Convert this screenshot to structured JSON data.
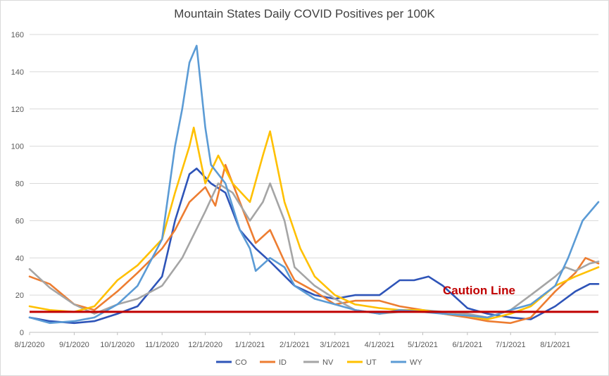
{
  "chart_data": {
    "type": "line",
    "title": "Mountain States Daily COVID Positives per 100K",
    "xlabel": "",
    "ylabel": "",
    "ylim": [
      0,
      160
    ],
    "yticks": [
      "0",
      "20",
      "40",
      "60",
      "80",
      "100",
      "120",
      "140",
      "160"
    ],
    "xticks": [
      "8/1/2020",
      "9/1/2020",
      "10/1/2020",
      "11/1/2020",
      "12/1/2020",
      "1/1/2021",
      "2/1/2021",
      "3/1/2021",
      "4/1/2021",
      "5/1/2021",
      "6/1/2021",
      "7/1/2021",
      "8/1/2021"
    ],
    "grid": "horizontal",
    "legend_position": "bottom",
    "x_start": "2020-08-01",
    "x_end": "2021-08-31",
    "reference_line": {
      "label": "Caution Line",
      "value": 11,
      "color": "#c00000"
    },
    "series": [
      {
        "name": "CO",
        "color": "#2e54b8",
        "points": [
          [
            "2020-08-01",
            8
          ],
          [
            "2020-08-15",
            6
          ],
          [
            "2020-09-01",
            5
          ],
          [
            "2020-09-15",
            6
          ],
          [
            "2020-10-01",
            10
          ],
          [
            "2020-10-15",
            14
          ],
          [
            "2020-11-01",
            30
          ],
          [
            "2020-11-10",
            60
          ],
          [
            "2020-11-20",
            85
          ],
          [
            "2020-11-25",
            88
          ],
          [
            "2020-12-05",
            80
          ],
          [
            "2020-12-15",
            75
          ],
          [
            "2020-12-25",
            55
          ],
          [
            "2021-01-05",
            45
          ],
          [
            "2021-01-15",
            38
          ],
          [
            "2021-02-01",
            25
          ],
          [
            "2021-02-15",
            20
          ],
          [
            "2021-03-01",
            18
          ],
          [
            "2021-03-15",
            20
          ],
          [
            "2021-04-01",
            20
          ],
          [
            "2021-04-15",
            28
          ],
          [
            "2021-04-25",
            28
          ],
          [
            "2021-05-05",
            30
          ],
          [
            "2021-05-15",
            25
          ],
          [
            "2021-06-01",
            13
          ],
          [
            "2021-06-15",
            10
          ],
          [
            "2021-07-01",
            8
          ],
          [
            "2021-07-15",
            7
          ],
          [
            "2021-08-01",
            14
          ],
          [
            "2021-08-15",
            22
          ],
          [
            "2021-08-25",
            26
          ],
          [
            "2021-08-31",
            26
          ]
        ]
      },
      {
        "name": "ID",
        "color": "#ed7d31",
        "points": [
          [
            "2020-08-01",
            30
          ],
          [
            "2020-08-15",
            26
          ],
          [
            "2020-09-01",
            15
          ],
          [
            "2020-09-15",
            12
          ],
          [
            "2020-10-01",
            22
          ],
          [
            "2020-10-15",
            32
          ],
          [
            "2020-11-01",
            45
          ],
          [
            "2020-11-10",
            55
          ],
          [
            "2020-11-20",
            70
          ],
          [
            "2020-12-01",
            78
          ],
          [
            "2020-12-08",
            68
          ],
          [
            "2020-12-15",
            90
          ],
          [
            "2020-12-25",
            70
          ],
          [
            "2021-01-05",
            48
          ],
          [
            "2021-01-15",
            55
          ],
          [
            "2021-01-25",
            38
          ],
          [
            "2021-02-01",
            28
          ],
          [
            "2021-02-15",
            22
          ],
          [
            "2021-03-01",
            15
          ],
          [
            "2021-03-15",
            17
          ],
          [
            "2021-04-01",
            17
          ],
          [
            "2021-04-15",
            14
          ],
          [
            "2021-05-01",
            12
          ],
          [
            "2021-05-15",
            10
          ],
          [
            "2021-06-01",
            8
          ],
          [
            "2021-06-15",
            6
          ],
          [
            "2021-07-01",
            5
          ],
          [
            "2021-07-15",
            8
          ],
          [
            "2021-08-01",
            22
          ],
          [
            "2021-08-15",
            32
          ],
          [
            "2021-08-22",
            40
          ],
          [
            "2021-08-31",
            37
          ]
        ]
      },
      {
        "name": "NV",
        "color": "#a5a5a5",
        "points": [
          [
            "2020-08-01",
            34
          ],
          [
            "2020-08-15",
            24
          ],
          [
            "2020-09-01",
            15
          ],
          [
            "2020-09-15",
            10
          ],
          [
            "2020-10-01",
            15
          ],
          [
            "2020-10-15",
            18
          ],
          [
            "2020-11-01",
            25
          ],
          [
            "2020-11-15",
            40
          ],
          [
            "2020-12-01",
            65
          ],
          [
            "2020-12-10",
            80
          ],
          [
            "2020-12-20",
            75
          ],
          [
            "2021-01-01",
            60
          ],
          [
            "2021-01-10",
            70
          ],
          [
            "2021-01-15",
            80
          ],
          [
            "2021-01-25",
            60
          ],
          [
            "2021-02-01",
            35
          ],
          [
            "2021-02-15",
            25
          ],
          [
            "2021-03-01",
            18
          ],
          [
            "2021-03-15",
            12
          ],
          [
            "2021-04-01",
            10
          ],
          [
            "2021-04-15",
            11
          ],
          [
            "2021-05-01",
            12
          ],
          [
            "2021-05-15",
            11
          ],
          [
            "2021-06-01",
            10
          ],
          [
            "2021-06-15",
            8
          ],
          [
            "2021-07-01",
            12
          ],
          [
            "2021-07-15",
            20
          ],
          [
            "2021-08-01",
            30
          ],
          [
            "2021-08-08",
            35
          ],
          [
            "2021-08-15",
            33
          ],
          [
            "2021-08-25",
            37
          ],
          [
            "2021-08-31",
            38
          ]
        ]
      },
      {
        "name": "UT",
        "color": "#ffc000",
        "points": [
          [
            "2020-08-01",
            14
          ],
          [
            "2020-08-15",
            12
          ],
          [
            "2020-09-01",
            11
          ],
          [
            "2020-09-15",
            14
          ],
          [
            "2020-10-01",
            28
          ],
          [
            "2020-10-15",
            36
          ],
          [
            "2020-11-01",
            50
          ],
          [
            "2020-11-10",
            75
          ],
          [
            "2020-11-20",
            100
          ],
          [
            "2020-11-23",
            110
          ],
          [
            "2020-12-01",
            80
          ],
          [
            "2020-12-10",
            95
          ],
          [
            "2020-12-20",
            80
          ],
          [
            "2021-01-01",
            70
          ],
          [
            "2021-01-10",
            95
          ],
          [
            "2021-01-15",
            108
          ],
          [
            "2021-01-25",
            70
          ],
          [
            "2021-02-05",
            45
          ],
          [
            "2021-02-15",
            30
          ],
          [
            "2021-03-01",
            20
          ],
          [
            "2021-03-15",
            15
          ],
          [
            "2021-04-01",
            13
          ],
          [
            "2021-04-15",
            12
          ],
          [
            "2021-05-01",
            12
          ],
          [
            "2021-05-15",
            10
          ],
          [
            "2021-06-01",
            9
          ],
          [
            "2021-06-15",
            7
          ],
          [
            "2021-07-01",
            10
          ],
          [
            "2021-07-15",
            14
          ],
          [
            "2021-08-01",
            25
          ],
          [
            "2021-08-15",
            30
          ],
          [
            "2021-08-31",
            35
          ]
        ]
      },
      {
        "name": "WY",
        "color": "#5b9bd5",
        "points": [
          [
            "2020-08-01",
            8
          ],
          [
            "2020-08-15",
            5
          ],
          [
            "2020-09-01",
            6
          ],
          [
            "2020-09-15",
            8
          ],
          [
            "2020-10-01",
            15
          ],
          [
            "2020-10-15",
            25
          ],
          [
            "2020-11-01",
            50
          ],
          [
            "2020-11-10",
            100
          ],
          [
            "2020-11-15",
            120
          ],
          [
            "2020-11-20",
            145
          ],
          [
            "2020-11-25",
            154
          ],
          [
            "2020-12-01",
            110
          ],
          [
            "2020-12-05",
            90
          ],
          [
            "2020-12-15",
            80
          ],
          [
            "2020-12-25",
            55
          ],
          [
            "2021-01-01",
            45
          ],
          [
            "2021-01-05",
            33
          ],
          [
            "2021-01-15",
            40
          ],
          [
            "2021-01-25",
            35
          ],
          [
            "2021-02-01",
            25
          ],
          [
            "2021-02-15",
            18
          ],
          [
            "2021-03-01",
            15
          ],
          [
            "2021-03-15",
            12
          ],
          [
            "2021-04-01",
            10
          ],
          [
            "2021-04-15",
            12
          ],
          [
            "2021-05-01",
            11
          ],
          [
            "2021-05-15",
            10
          ],
          [
            "2021-06-01",
            9
          ],
          [
            "2021-06-15",
            8
          ],
          [
            "2021-07-01",
            12
          ],
          [
            "2021-07-15",
            15
          ],
          [
            "2021-08-01",
            25
          ],
          [
            "2021-08-10",
            40
          ],
          [
            "2021-08-20",
            60
          ],
          [
            "2021-08-31",
            70
          ]
        ]
      }
    ]
  }
}
